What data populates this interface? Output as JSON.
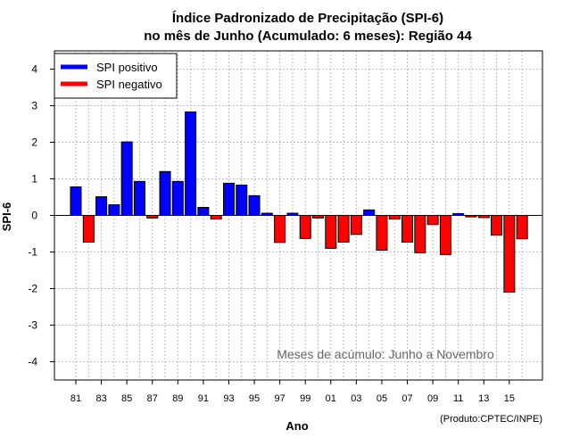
{
  "chart_data": {
    "type": "bar",
    "title_line1": "Índice Padronizado de Precipitação (SPI-6)",
    "title_line2": "no mês de Junho (Acumulado: 6 meses): Região 44",
    "xlabel": "Ano",
    "ylabel": "SPI-6",
    "ylim": [
      -4.5,
      4.5
    ],
    "y_ticks": [
      -4,
      -3,
      -2,
      -1,
      0,
      1,
      2,
      3,
      4
    ],
    "x_tick_labels": [
      "81",
      "83",
      "85",
      "87",
      "89",
      "91",
      "93",
      "95",
      "97",
      "99",
      "01",
      "03",
      "05",
      "07",
      "09",
      "11",
      "13",
      "15"
    ],
    "categories": [
      "81",
      "82",
      "83",
      "84",
      "85",
      "86",
      "87",
      "88",
      "89",
      "90",
      "91",
      "92",
      "93",
      "94",
      "95",
      "96",
      "97",
      "98",
      "99",
      "00",
      "01",
      "02",
      "03",
      "04",
      "05",
      "06",
      "07",
      "08",
      "09",
      "10",
      "11",
      "12",
      "13",
      "14",
      "15",
      "16"
    ],
    "values": [
      0.78,
      -0.73,
      0.51,
      0.29,
      2.01,
      0.93,
      -0.07,
      1.2,
      0.93,
      2.83,
      0.22,
      -0.1,
      0.88,
      0.83,
      0.54,
      0.06,
      -0.74,
      0.06,
      -0.63,
      -0.07,
      -0.9,
      -0.73,
      -0.52,
      0.15,
      -0.95,
      -0.1,
      -0.73,
      -1.02,
      -0.25,
      -1.07,
      0.05,
      -0.04,
      -0.06,
      -0.54,
      -2.1,
      -0.64
    ],
    "colors": {
      "positive": "#0000ff",
      "negative": "#ff0000",
      "grid": "#bfbfbf"
    },
    "legend": {
      "position": "top-left",
      "entries": [
        {
          "label": "SPI positivo",
          "color": "#0000ff"
        },
        {
          "label": "SPI negativo",
          "color": "#ff0000"
        }
      ]
    },
    "annotation": "Meses de acúmulo: Junho a Novembro",
    "credit": "(Produto:CPTEC/INPE)"
  }
}
